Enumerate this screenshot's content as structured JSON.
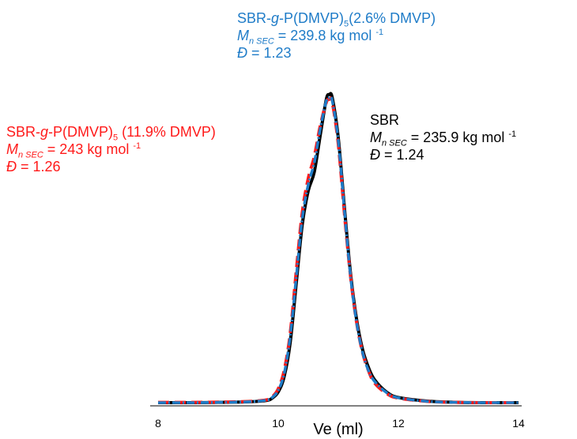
{
  "chart_data": {
    "type": "line",
    "xlabel": "Ve (ml)",
    "ylabel": "",
    "xlim": [
      8,
      14
    ],
    "ylim": [
      0,
      1.05
    ],
    "x_ticks": [
      "8",
      "10",
      "12",
      "14"
    ],
    "yaxis": "hidden",
    "grid": false,
    "x": [
      8.0,
      8.5,
      9.0,
      9.5,
      9.8,
      9.9,
      10.0,
      10.1,
      10.2,
      10.3,
      10.4,
      10.5,
      10.6,
      10.7,
      10.8,
      10.85,
      10.9,
      11.0,
      11.1,
      11.2,
      11.3,
      11.4,
      11.5,
      11.6,
      11.8,
      12.0,
      12.5,
      13.0,
      13.5,
      14.0
    ],
    "series": [
      {
        "name": "SBR",
        "color": "#000000",
        "dash": "solid",
        "values": [
          0.005,
          0.005,
          0.006,
          0.008,
          0.012,
          0.02,
          0.04,
          0.09,
          0.2,
          0.39,
          0.58,
          0.69,
          0.75,
          0.87,
          0.985,
          1.0,
          0.99,
          0.86,
          0.64,
          0.43,
          0.28,
          0.18,
          0.12,
          0.08,
          0.04,
          0.022,
          0.01,
          0.006,
          0.005,
          0.005
        ]
      },
      {
        "name": "SBR-g-P(DMVP)5 (11.9% DMVP)",
        "color": "#ff1a1a",
        "dash": "long-dash",
        "values": [
          0.006,
          0.006,
          0.007,
          0.009,
          0.014,
          0.024,
          0.05,
          0.11,
          0.23,
          0.43,
          0.62,
          0.73,
          0.8,
          0.9,
          0.975,
          0.985,
          0.975,
          0.84,
          0.62,
          0.42,
          0.27,
          0.17,
          0.11,
          0.07,
          0.035,
          0.02,
          0.009,
          0.006,
          0.005,
          0.005
        ]
      },
      {
        "name": "SBR-g-P(DMVP)5(2.6% DMVP)",
        "color": "#1f7cc8",
        "dash": "dash-dot",
        "values": [
          0.005,
          0.005,
          0.006,
          0.008,
          0.013,
          0.022,
          0.045,
          0.1,
          0.22,
          0.41,
          0.6,
          0.71,
          0.78,
          0.89,
          0.98,
          0.99,
          0.98,
          0.85,
          0.63,
          0.42,
          0.27,
          0.17,
          0.11,
          0.075,
          0.038,
          0.021,
          0.009,
          0.006,
          0.005,
          0.005
        ]
      }
    ],
    "annotations": {
      "sbr": {
        "title": "SBR",
        "mn_symbol": "M",
        "mn_sub": "n SEC",
        "mn_value": " = 235.9 kg mol ",
        "mn_sup": "-1",
        "d_symbol": "Đ",
        "d_value": " = 1.24",
        "color": "#000000"
      },
      "red": {
        "title_a": "SBR-",
        "title_g": "g",
        "title_b": "-P(DMVP)",
        "title_sub": "5",
        "title_c": " (11.9% DMVP)",
        "mn_symbol": "M",
        "mn_sub": "n SEC",
        "mn_value": " = 243 kg mol ",
        "mn_sup": "-1",
        "d_symbol": "Đ",
        "d_value": " = 1.26",
        "color": "#ff1a1a"
      },
      "blue": {
        "title_a": "SBR-",
        "title_g": "g",
        "title_b": "-P(DMVP)",
        "title_sub": "5",
        "title_c": "(2.6% DMVP)",
        "mn_symbol": "M",
        "mn_sub": "n SEC",
        "mn_value": " = 239.8 kg mol ",
        "mn_sup": "-1",
        "d_symbol": "Đ",
        "d_value": " = 1.23",
        "color": "#1f7cc8"
      }
    }
  }
}
